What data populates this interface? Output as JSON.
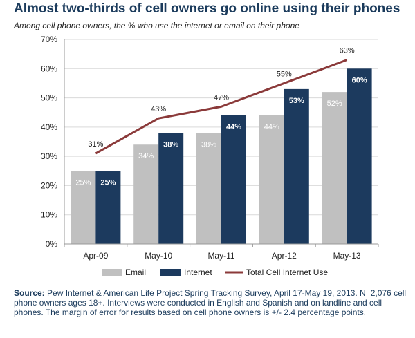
{
  "title": "Almost two-thirds of cell owners go online using their phones",
  "subtitle": "Among cell phone owners, the % who use the internet or email on their phone",
  "source_label": "Source:",
  "source_text": "Pew Internet & American Life Project Spring Tracking Survey, April 17-May 19, 2013. N=2,076 cell phone owners ages 18+.  Interviews were conducted in English and Spanish and on landline and cell phones.  The margin of error for results based on cell phone owners is +/- 2.4 percentage points.",
  "colors": {
    "email": "#c0c0c0",
    "internet": "#1c3a5e",
    "total": "#8b3a3a",
    "grid": "#d9d9d9"
  },
  "chart_data": {
    "type": "bar",
    "categories": [
      "Apr-09",
      "May-10",
      "May-11",
      "Apr-12",
      "May-13"
    ],
    "series": [
      {
        "name": "Email",
        "type": "bar",
        "values": [
          25,
          34,
          38,
          44,
          52
        ],
        "labels": [
          "25%",
          "34%",
          "38%",
          "44%",
          "52%"
        ]
      },
      {
        "name": "Internet",
        "type": "bar",
        "values": [
          25,
          38,
          44,
          53,
          60
        ],
        "labels": [
          "25%",
          "38%",
          "44%",
          "53%",
          "60%"
        ]
      },
      {
        "name": "Total Cell Internet Use",
        "type": "line",
        "values": [
          31,
          43,
          47,
          55,
          63
        ],
        "labels": [
          "31%",
          "43%",
          "47%",
          "55%",
          "63%"
        ]
      }
    ],
    "ylim": [
      0,
      70
    ],
    "yticks": [
      0,
      10,
      20,
      30,
      40,
      50,
      60,
      70
    ],
    "ytick_labels": [
      "0%",
      "10%",
      "20%",
      "30%",
      "40%",
      "50%",
      "60%",
      "70%"
    ],
    "grid": true,
    "legend": "bottom"
  }
}
